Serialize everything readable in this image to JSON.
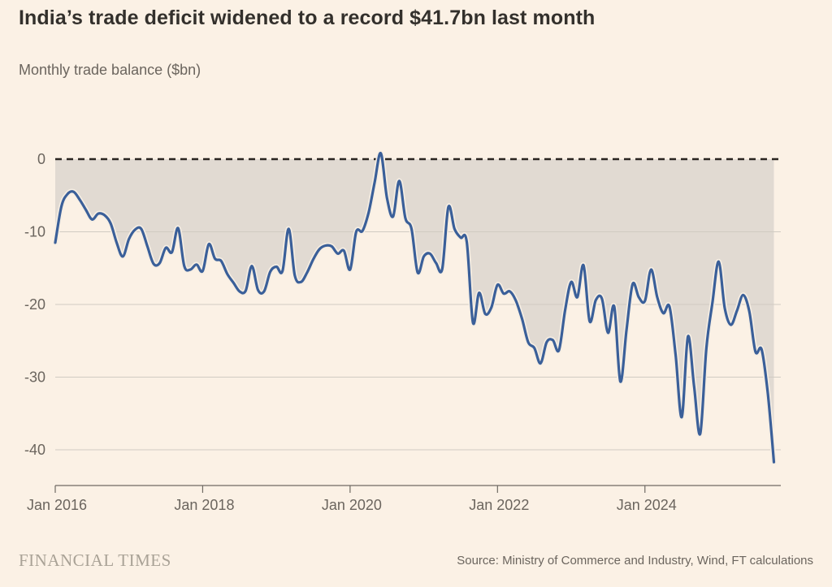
{
  "header": {
    "title": "India’s trade deficit widened to a record $41.7bn last month",
    "subtitle": "Monthly trade balance ($bn)"
  },
  "chart_data": {
    "type": "line",
    "title": "India’s trade deficit widened to a record $41.7bn last month",
    "subtitle": "Monthly trade balance ($bn)",
    "xlabel": "",
    "ylabel": "Monthly trade balance ($bn)",
    "x_start": "2016-01",
    "x_end": "2025-10",
    "frequency": "monthly",
    "x_tick_labels": [
      "Jan 2016",
      "Jan 2018",
      "Jan 2020",
      "Jan 2022",
      "Jan 2024"
    ],
    "x_tick_month_index": [
      0,
      24,
      48,
      72,
      96
    ],
    "y_ticks": [
      0,
      -10,
      -20,
      -30,
      -40
    ],
    "ylim": [
      -45,
      2
    ],
    "grid": true,
    "zero_line_style": "dashed",
    "legend": "none",
    "record_low_label": "-41.7",
    "colors": {
      "background": "#fbf1e5",
      "line": "#3a5f99",
      "area_fill": "#e1dad2",
      "gridline": "#d1cbc2",
      "zero_line": "#2a2520",
      "axis": "#6f6a63",
      "tick_label": "#6b655e"
    },
    "series": [
      {
        "name": "Monthly trade balance ($bn)",
        "values": [
          -11.5,
          -6.5,
          -4.8,
          -4.5,
          -5.6,
          -7.0,
          -8.3,
          -7.5,
          -7.7,
          -8.8,
          -11.5,
          -13.4,
          -11.0,
          -9.7,
          -9.6,
          -12.0,
          -14.4,
          -14.3,
          -12.2,
          -12.8,
          -9.5,
          -14.7,
          -15.2,
          -14.5,
          -15.4,
          -11.7,
          -13.7,
          -14.0,
          -15.8,
          -17.0,
          -18.2,
          -18.1,
          -14.7,
          -18.0,
          -18.2,
          -15.5,
          -14.8,
          -15.4,
          -9.6,
          -16.0,
          -16.9,
          -15.6,
          -13.8,
          -12.4,
          -11.9,
          -12.0,
          -13.0,
          -12.6,
          -15.2,
          -10.0,
          -9.9,
          -7.4,
          -3.2,
          0.8,
          -5.3,
          -7.9,
          -3.0,
          -8.1,
          -9.6,
          -15.6,
          -13.4,
          -13.0,
          -14.3,
          -15.1,
          -6.6,
          -9.6,
          -10.8,
          -11.4,
          -22.5,
          -18.4,
          -21.3,
          -20.4,
          -17.3,
          -18.5,
          -18.2,
          -19.5,
          -22.0,
          -25.2,
          -26.0,
          -28.1,
          -25.2,
          -24.9,
          -26.3,
          -20.8,
          -16.9,
          -19.0,
          -14.6,
          -22.3,
          -19.4,
          -19.2,
          -23.9,
          -20.3,
          -30.6,
          -23.5,
          -17.2,
          -19.0,
          -19.5,
          -15.2,
          -19.0,
          -21.2,
          -20.3,
          -27.0,
          -35.5,
          -24.4,
          -31.2,
          -37.8,
          -26.0,
          -19.7,
          -14.1,
          -20.5,
          -22.8,
          -20.8,
          -18.7,
          -21.0,
          -26.5,
          -26.2,
          -32.2,
          -41.7
        ]
      }
    ]
  },
  "footer": {
    "brand": "FINANCIAL TIMES",
    "source": "Source: Ministry of Commerce and Industry, Wind, FT calculations"
  }
}
